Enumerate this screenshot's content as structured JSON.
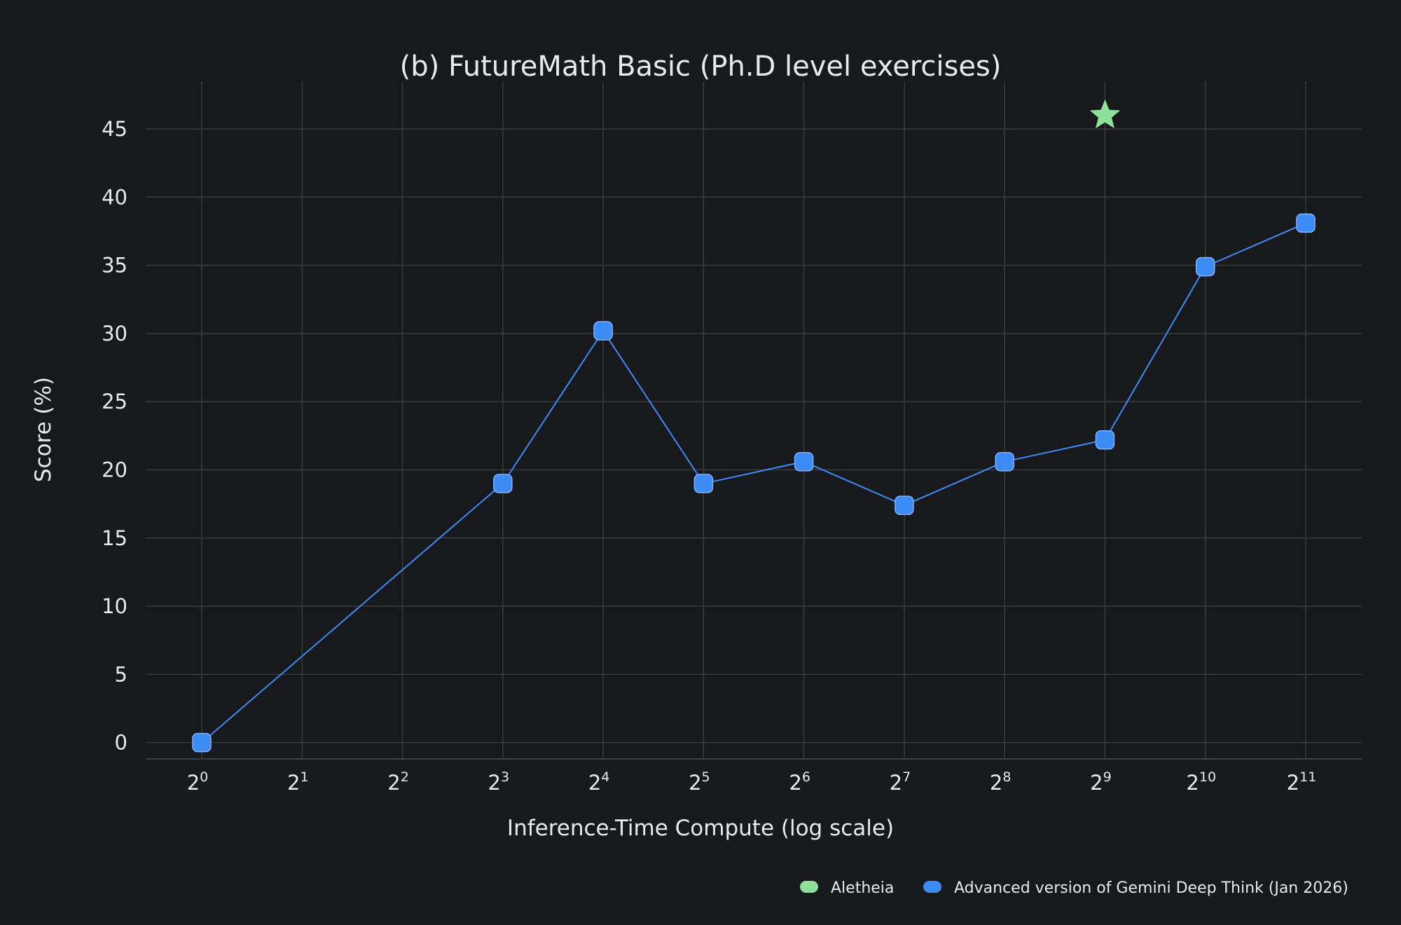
{
  "chart_data": {
    "type": "line",
    "title": "(b) FutureMath Basic (Ph.D level exercises)",
    "xlabel": "Inference-Time Compute (log scale)",
    "ylabel": "Score (%)",
    "x_scale": "log2",
    "x_tick_base": "2",
    "x_tick_exponents": [
      "0",
      "1",
      "2",
      "3",
      "4",
      "5",
      "6",
      "7",
      "8",
      "9",
      "10",
      "11"
    ],
    "y_ticks": [
      "0",
      "5",
      "10",
      "15",
      "20",
      "25",
      "30",
      "35",
      "40",
      "45"
    ],
    "ylim": [
      -1.2,
      48.5
    ],
    "grid": true,
    "legend_position": "bottom-right",
    "series": [
      {
        "name": "Advanced version of Gemini Deep Think (Jan 2026)",
        "color": "#3d8bf5",
        "marker": "rounded-square",
        "x": [
          1,
          8,
          16,
          32,
          64,
          128,
          256,
          512,
          1024,
          2048
        ],
        "y": [
          0.0,
          19.0,
          30.2,
          19.0,
          20.6,
          17.4,
          20.6,
          22.2,
          34.9,
          38.1
        ]
      },
      {
        "name": "Aletheia",
        "color": "#8ee19a",
        "marker": "star",
        "x": [
          512
        ],
        "y": [
          46.0
        ]
      }
    ]
  }
}
